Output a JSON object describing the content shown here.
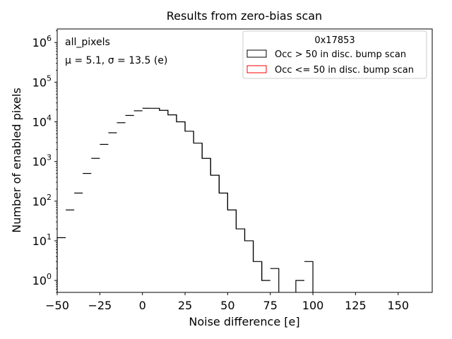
{
  "chart_data": {
    "type": "histogram",
    "title": "Results from zero-bias scan",
    "xlabel": "Noise difference [e]",
    "ylabel": "Number of enabled pixels",
    "xlim": [
      -50,
      170
    ],
    "ylim": [
      0.5,
      2200000
    ],
    "yscale": "log",
    "x_ticks": [
      -50,
      -25,
      0,
      25,
      50,
      75,
      100,
      125,
      150
    ],
    "x_tick_labels": [
      "−50",
      "−25",
      "0",
      "25",
      "50",
      "75",
      "100",
      "125",
      "150"
    ],
    "y_ticks": [
      1,
      10,
      100,
      1000,
      10000,
      100000,
      1000000
    ],
    "y_tick_labels": [
      {
        "base": "10",
        "exp": "0"
      },
      {
        "base": "10",
        "exp": "1"
      },
      {
        "base": "10",
        "exp": "2"
      },
      {
        "base": "10",
        "exp": "3"
      },
      {
        "base": "10",
        "exp": "4"
      },
      {
        "base": "10",
        "exp": "5"
      },
      {
        "base": "10",
        "exp": "6"
      }
    ],
    "annotations": {
      "group": "all_pixels",
      "stats": "μ = 5.1, σ = 13.5 (e)"
    },
    "legend": {
      "title": "0x17853",
      "position": "top-right",
      "entries": [
        {
          "label": "Occ > 50 in disc. bump scan",
          "color": "#000000"
        },
        {
          "label": "Occ <= 50 in disc. bump scan",
          "color": "#ff0000"
        }
      ]
    },
    "bin_width": 5,
    "series": [
      {
        "name": "Occ > 50 in disc. bump scan",
        "color": "#000000",
        "bin_edges": [
          -50,
          -45,
          -40,
          -35,
          -30,
          -25,
          -20,
          -15,
          -10,
          -5,
          0,
          5,
          10,
          15,
          20,
          25,
          30,
          35,
          40,
          45,
          50,
          55,
          60,
          65,
          70,
          75,
          80,
          85,
          90,
          95,
          100
        ],
        "counts": [
          12,
          60,
          160,
          500,
          1200,
          2700,
          5300,
          9500,
          14500,
          19000,
          22000,
          22000,
          19500,
          15000,
          10000,
          5800,
          2900,
          1200,
          450,
          160,
          60,
          20,
          10,
          3,
          1,
          2,
          0,
          0,
          1,
          3
        ]
      },
      {
        "name": "Occ <= 50 in disc. bump scan",
        "color": "#ff0000",
        "bin_edges": [],
        "counts": []
      }
    ]
  }
}
